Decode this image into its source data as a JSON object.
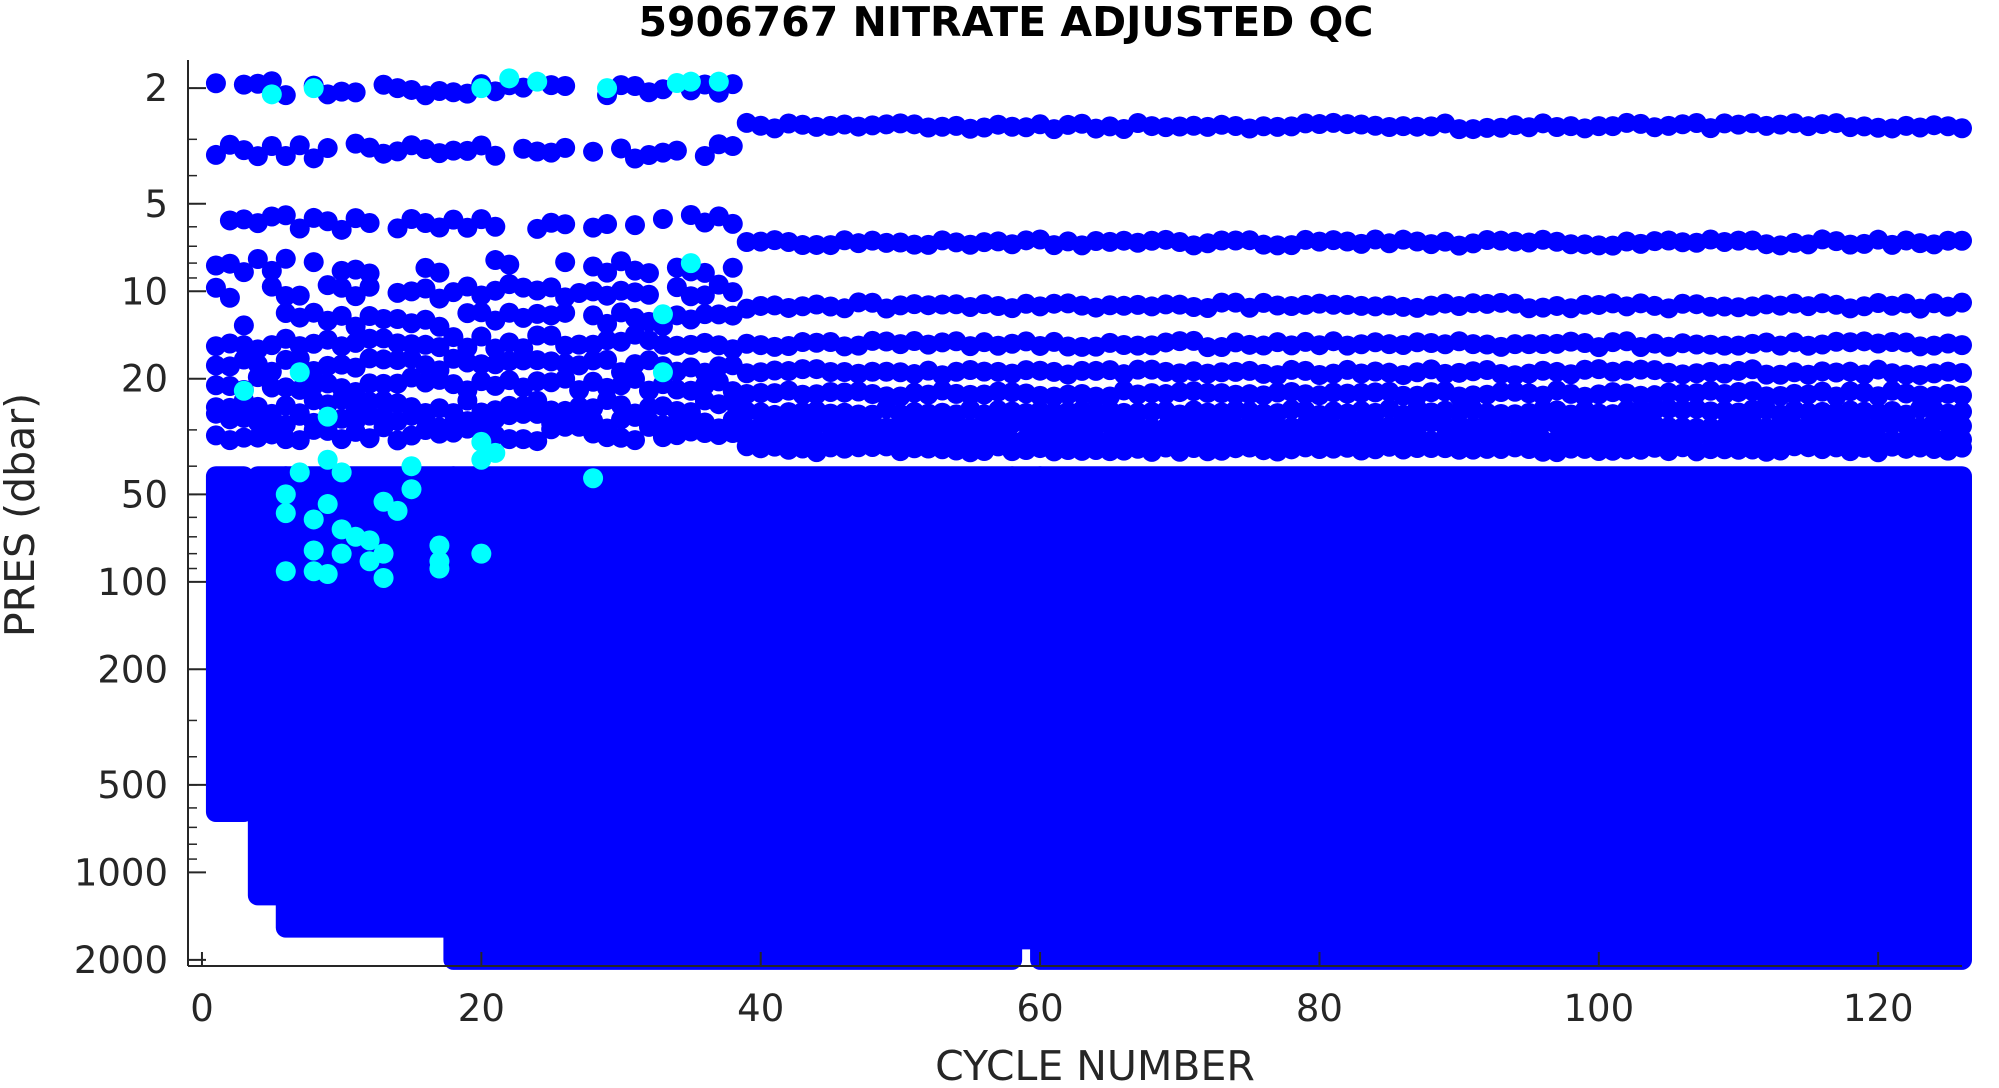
{
  "chart_data": {
    "type": "scatter",
    "title": "5906767  NITRATE ADJUSTED QC",
    "xlabel": "CYCLE NUMBER",
    "ylabel": "PRES (dbar)",
    "xlim": [
      -1,
      126
    ],
    "ylim": [
      1.6,
      2100
    ],
    "y_scale": "log",
    "y_reversed": true,
    "grid": false,
    "legend": "none",
    "x_ticks": [
      0,
      20,
      40,
      60,
      80,
      100,
      120
    ],
    "x_tick_labels": [
      "0",
      "20",
      "40",
      "60",
      "80",
      "100",
      "120"
    ],
    "y_ticks": [
      2,
      5,
      10,
      20,
      50,
      100,
      200,
      500,
      1000,
      2000
    ],
    "y_tick_labels": [
      "2",
      "5",
      "10",
      "20",
      "50",
      "100",
      "200",
      "500",
      "1000",
      "2000"
    ],
    "colors": {
      "qc_good": "#0000ff",
      "qc_flagged": "#00ffff",
      "axis": "#262626"
    },
    "series": [
      {
        "color": "#0000ff",
        "segments": [
          {
            "cycles": [
              1,
              3
            ],
            "max_pres": 620
          },
          {
            "cycles": [
              4,
              6
            ],
            "max_pres": 1200
          },
          {
            "cycles": [
              6,
              18
            ],
            "max_pres": 1550
          },
          {
            "cycles": [
              18,
              58
            ],
            "max_pres": 2000
          },
          {
            "cycles": [
              58,
              60
            ],
            "max_pres": 1700
          },
          {
            "cycles": [
              60,
              126
            ],
            "max_pres": 2000
          }
        ],
        "early_levels": [
          2,
          3.3,
          5.8,
          8.2,
          10,
          12.5,
          15,
          18,
          21,
          25,
          28,
          31
        ],
        "late_levels": [
          2.7,
          6.8,
          11.2,
          15.2,
          19,
          22.5,
          26,
          29,
          32,
          35
        ]
      },
      {
        "color": "#00ffff",
        "points": [
          [
            5,
            2.1
          ],
          [
            8,
            2.0
          ],
          [
            20,
            2.0
          ],
          [
            22,
            1.85
          ],
          [
            24,
            1.9
          ],
          [
            29,
            2.0
          ],
          [
            34,
            1.92
          ],
          [
            35,
            1.9
          ],
          [
            37,
            1.9
          ],
          [
            35,
            8.0
          ],
          [
            33,
            12.0
          ],
          [
            3,
            22.0
          ],
          [
            7,
            19.0
          ],
          [
            33,
            19.0
          ],
          [
            9,
            27.0
          ],
          [
            20,
            33.0
          ],
          [
            21,
            36.0
          ],
          [
            20,
            38.0
          ],
          [
            9,
            38.0
          ],
          [
            10,
            42.0
          ],
          [
            7,
            42.0
          ],
          [
            15,
            40.0
          ],
          [
            28,
            44.0
          ],
          [
            6,
            50.0
          ],
          [
            15,
            48.0
          ],
          [
            13,
            53.0
          ],
          [
            9,
            54.0
          ],
          [
            14,
            57.0
          ],
          [
            6,
            58.0
          ],
          [
            8,
            61.0
          ],
          [
            10,
            66.0
          ],
          [
            11,
            70.0
          ],
          [
            12,
            72.0
          ],
          [
            17,
            75.0
          ],
          [
            8,
            78.0
          ],
          [
            10,
            80.0
          ],
          [
            13,
            80.0
          ],
          [
            20,
            80.0
          ],
          [
            12,
            85.0
          ],
          [
            17,
            85.0
          ],
          [
            17,
            90.0
          ],
          [
            6,
            92.0
          ],
          [
            8,
            92.0
          ],
          [
            9,
            94.0
          ],
          [
            13,
            97.0
          ]
        ]
      }
    ]
  }
}
